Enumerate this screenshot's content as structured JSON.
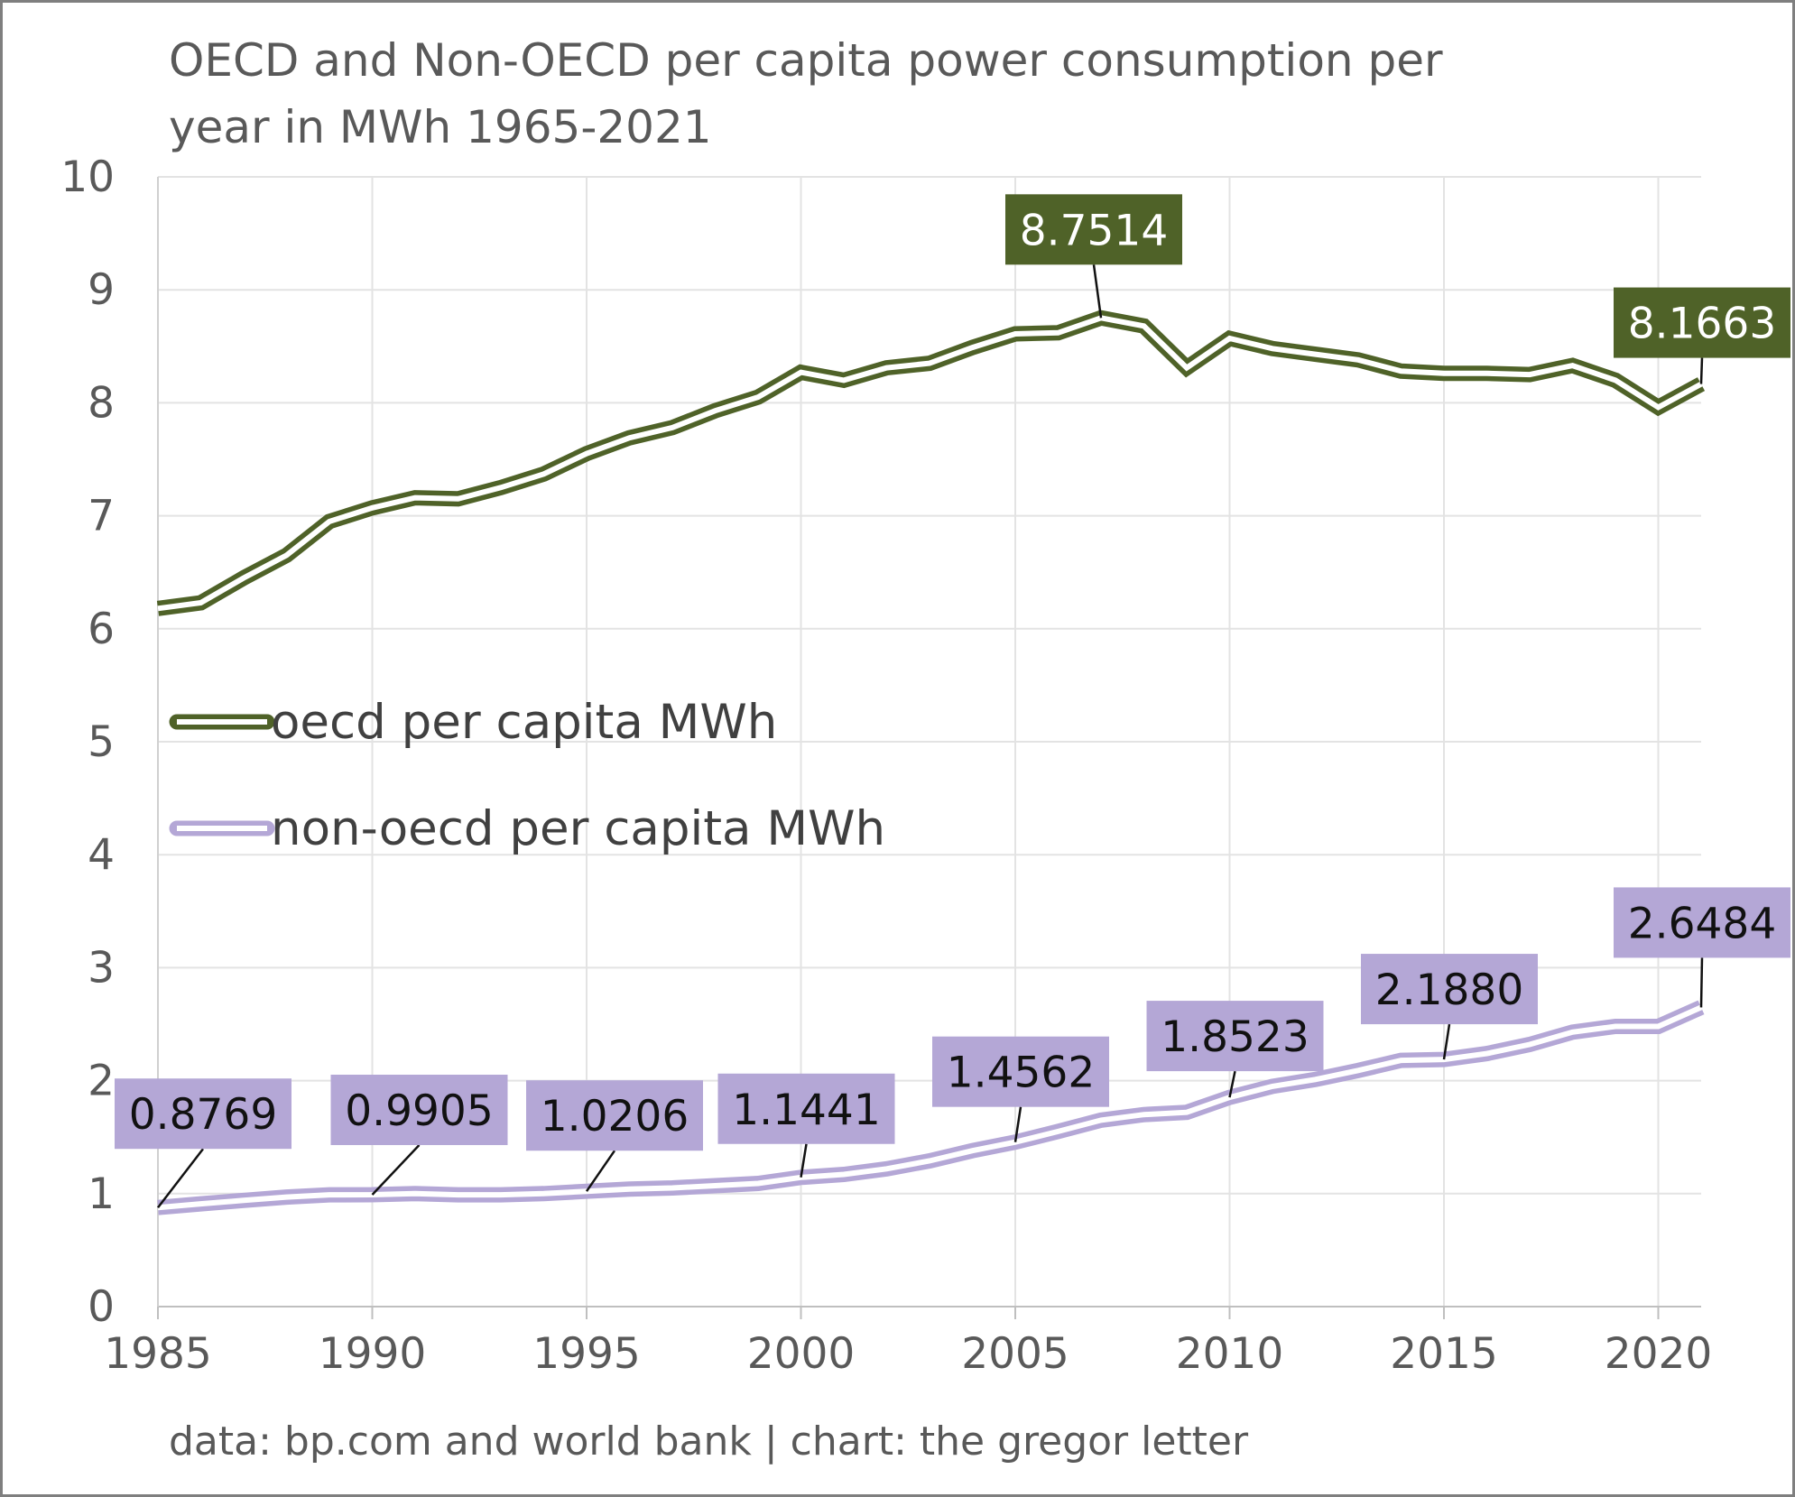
{
  "chart_data": {
    "type": "line",
    "title": "OECD and Non-OECD per capita power consumption per\nyear in MWh 1965-2021",
    "source_note": "data: bp.com and world bank | chart: the gregor letter",
    "xlim": [
      1985,
      2021
    ],
    "ylim": [
      0,
      10
    ],
    "x_ticks": [
      "1985",
      "1990",
      "1995",
      "2000",
      "2005",
      "2010",
      "2015",
      "2020"
    ],
    "y_ticks": [
      "0",
      "1",
      "2",
      "3",
      "4",
      "5",
      "6",
      "7",
      "8",
      "9",
      "10"
    ],
    "grid": true,
    "legend_position": "left-middle",
    "x": [
      1985,
      1986,
      1987,
      1988,
      1989,
      1990,
      1991,
      1992,
      1993,
      1994,
      1995,
      1996,
      1997,
      1998,
      1999,
      2000,
      2001,
      2002,
      2003,
      2004,
      2005,
      2006,
      2007,
      2008,
      2009,
      2010,
      2011,
      2012,
      2013,
      2014,
      2015,
      2016,
      2017,
      2018,
      2019,
      2020,
      2021
    ],
    "series": [
      {
        "name": "oecd per capita MWh",
        "color": "#4f6228",
        "values": [
          6.18,
          6.23,
          6.45,
          6.65,
          6.95,
          7.07,
          7.16,
          7.15,
          7.25,
          7.37,
          7.55,
          7.69,
          7.78,
          7.93,
          8.05,
          8.27,
          8.2,
          8.31,
          8.35,
          8.49,
          8.61,
          8.62,
          8.7514,
          8.68,
          8.31,
          8.57,
          8.48,
          8.43,
          8.38,
          8.28,
          8.26,
          8.26,
          8.25,
          8.33,
          8.2,
          7.96,
          8.1663
        ],
        "labels": [
          {
            "x": 2007,
            "text": "8.7514"
          },
          {
            "x": 2021,
            "text": "8.1663"
          }
        ]
      },
      {
        "name": "non-oecd per capita MWh",
        "color": "#b4a7d6",
        "values": [
          0.8769,
          0.91,
          0.94,
          0.97,
          0.99,
          0.9905,
          1.0,
          0.99,
          0.99,
          1.0,
          1.0206,
          1.04,
          1.05,
          1.07,
          1.09,
          1.1441,
          1.17,
          1.22,
          1.29,
          1.38,
          1.4562,
          1.55,
          1.65,
          1.7,
          1.72,
          1.8523,
          1.95,
          2.01,
          2.09,
          2.18,
          2.188,
          2.24,
          2.32,
          2.43,
          2.48,
          2.48,
          2.6484
        ],
        "labels": [
          {
            "x": 1985,
            "text": "0.8769"
          },
          {
            "x": 1990,
            "text": "0.9905"
          },
          {
            "x": 1995,
            "text": "1.0206"
          },
          {
            "x": 2000,
            "text": "1.1441"
          },
          {
            "x": 2005,
            "text": "1.4562"
          },
          {
            "x": 2010,
            "text": "1.8523"
          },
          {
            "x": 2015,
            "text": "2.1880"
          },
          {
            "x": 2021,
            "text": "2.6484"
          }
        ]
      }
    ]
  }
}
